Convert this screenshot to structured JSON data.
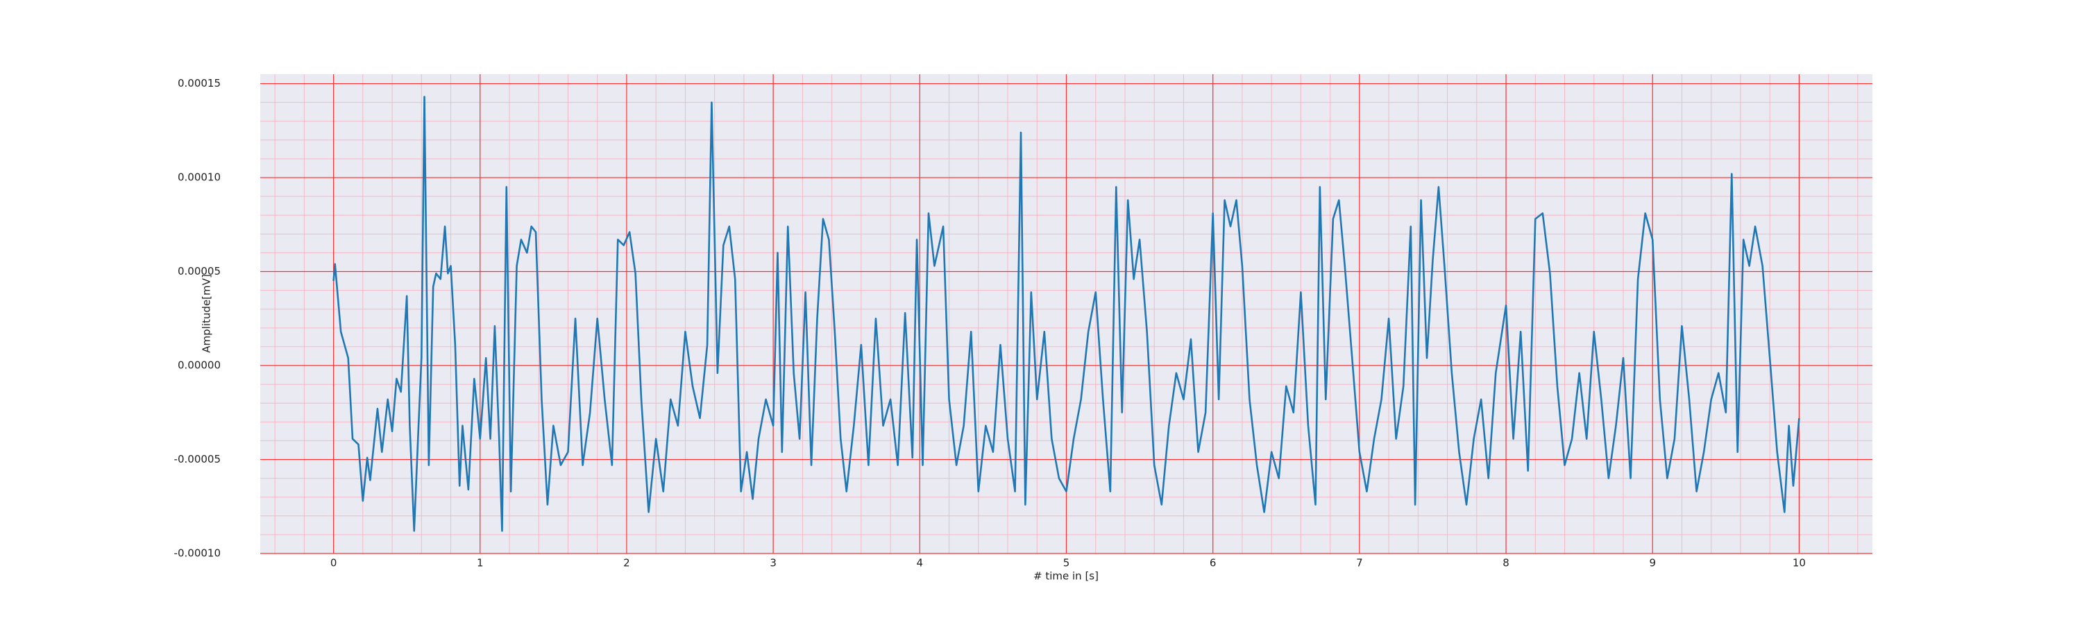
{
  "chart_data": {
    "type": "line",
    "xlabel": "# time in [s]",
    "ylabel": "Amplitude[mV]",
    "xlim": [
      -0.5,
      10.5
    ],
    "ylim": [
      -0.0001,
      0.000155
    ],
    "xticks": [
      0,
      1,
      2,
      3,
      4,
      5,
      6,
      7,
      8,
      9,
      10
    ],
    "yticks": [
      {
        "value": -0.0001,
        "label": "-0.00010"
      },
      {
        "value": -5e-05,
        "label": "-0.00005"
      },
      {
        "value": 0,
        "label": "0.00000"
      },
      {
        "value": 5e-05,
        "label": "0.00005"
      },
      {
        "value": 0.0001,
        "label": "0.00010"
      },
      {
        "value": 0.00015,
        "label": "0.00015"
      }
    ],
    "grid": true,
    "minor_grid": true,
    "series": [
      {
        "color": "#1f77b4",
        "x": [
          0,
          0.01,
          0.05,
          0.1,
          0.13,
          0.17,
          0.2,
          0.23,
          0.25,
          0.3,
          0.33,
          0.37,
          0.4,
          0.43,
          0.46,
          0.5,
          0.52,
          0.55,
          0.58,
          0.6,
          0.62,
          0.65,
          0.68,
          0.7,
          0.73,
          0.76,
          0.78,
          0.8,
          0.83,
          0.86,
          0.88,
          0.92,
          0.96,
          1.0,
          1.04,
          1.07,
          1.1,
          1.13,
          1.15,
          1.18,
          1.21,
          1.25,
          1.28,
          1.32,
          1.35,
          1.38,
          1.42,
          1.46,
          1.5,
          1.55,
          1.6,
          1.65,
          1.7,
          1.75,
          1.8,
          1.85,
          1.9,
          1.94,
          1.98,
          2.02,
          2.06,
          2.1,
          2.15,
          2.2,
          2.25,
          2.3,
          2.35,
          2.4,
          2.45,
          2.5,
          2.55,
          2.58,
          2.62,
          2.66,
          2.7,
          2.74,
          2.78,
          2.82,
          2.86,
          2.9,
          2.95,
          3.0,
          3.03,
          3.06,
          3.1,
          3.14,
          3.18,
          3.22,
          3.26,
          3.3,
          3.34,
          3.38,
          3.42,
          3.46,
          3.5,
          3.55,
          3.6,
          3.65,
          3.7,
          3.75,
          3.8,
          3.85,
          3.9,
          3.95,
          3.98,
          4.02,
          4.06,
          4.1,
          4.16,
          4.2,
          4.25,
          4.3,
          4.35,
          4.4,
          4.45,
          4.5,
          4.55,
          4.6,
          4.65,
          4.69,
          4.72,
          4.76,
          4.8,
          4.85,
          4.9,
          4.95,
          5.0,
          5.05,
          5.1,
          5.15,
          5.2,
          5.25,
          5.3,
          5.34,
          5.38,
          5.42,
          5.46,
          5.5,
          5.55,
          5.6,
          5.65,
          5.7,
          5.75,
          5.8,
          5.85,
          5.9,
          5.95,
          6.0,
          6.04,
          6.08,
          6.12,
          6.16,
          6.2,
          6.25,
          6.3,
          6.35,
          6.4,
          6.45,
          6.5,
          6.55,
          6.6,
          6.65,
          6.7,
          6.73,
          6.77,
          6.82,
          6.86,
          6.9,
          6.95,
          7.0,
          7.05,
          7.1,
          7.15,
          7.2,
          7.25,
          7.3,
          7.35,
          7.38,
          7.42,
          7.46,
          7.5,
          7.54,
          7.58,
          7.63,
          7.68,
          7.73,
          7.78,
          7.83,
          7.88,
          7.93,
          8.0,
          8.05,
          8.1,
          8.15,
          8.2,
          8.25,
          8.3,
          8.35,
          8.4,
          8.45,
          8.5,
          8.55,
          8.6,
          8.65,
          8.7,
          8.75,
          8.8,
          8.85,
          8.9,
          8.95,
          9.0,
          9.05,
          9.1,
          9.15,
          9.2,
          9.25,
          9.3,
          9.35,
          9.4,
          9.45,
          9.5,
          9.54,
          9.58,
          9.62,
          9.66,
          9.7,
          9.75,
          9.8,
          9.85,
          9.9,
          9.93,
          9.96,
          10.0
        ],
        "values": [
          4.5e-05,
          5.4e-05,
          1.8e-05,
          4e-06,
          -3.9e-05,
          -4.2e-05,
          -7.2e-05,
          -4.9e-05,
          -6.1e-05,
          -2.3e-05,
          -4.6e-05,
          -1.8e-05,
          -3.5e-05,
          -7e-06,
          -1.4e-05,
          3.7e-05,
          -3.2e-05,
          -8.8e-05,
          -3.2e-05,
          4e-06,
          0.000143,
          -5.3e-05,
          4.2e-05,
          4.9e-05,
          4.6e-05,
          7.4e-05,
          4.9e-05,
          5.3e-05,
          1.1e-05,
          -6.4e-05,
          -3.2e-05,
          -6.6e-05,
          -7e-06,
          -3.9e-05,
          4e-06,
          -3.9e-05,
          2.1e-05,
          -3.9e-05,
          -8.8e-05,
          9.5e-05,
          -6.7e-05,
          5.3e-05,
          6.7e-05,
          6e-05,
          7.4e-05,
          7.1e-05,
          -1.8e-05,
          -7.4e-05,
          -3.2e-05,
          -5.3e-05,
          -4.6e-05,
          2.5e-05,
          -5.3e-05,
          -2.5e-05,
          2.5e-05,
          -1.8e-05,
          -5.3e-05,
          6.7e-05,
          6.4e-05,
          7.1e-05,
          4.9e-05,
          -1.8e-05,
          -7.8e-05,
          -3.9e-05,
          -6.7e-05,
          -1.8e-05,
          -3.2e-05,
          1.8e-05,
          -1.1e-05,
          -2.8e-05,
          1.1e-05,
          0.00014,
          -4e-06,
          6.4e-05,
          7.4e-05,
          4.6e-05,
          -6.7e-05,
          -4.6e-05,
          -7.1e-05,
          -3.9e-05,
          -1.8e-05,
          -3.2e-05,
          6e-05,
          -4.6e-05,
          7.4e-05,
          -4e-06,
          -3.9e-05,
          3.9e-05,
          -5.3e-05,
          2.5e-05,
          7.8e-05,
          6.7e-05,
          1.8e-05,
          -3.9e-05,
          -6.7e-05,
          -3.2e-05,
          1.1e-05,
          -5.3e-05,
          2.5e-05,
          -3.2e-05,
          -1.8e-05,
          -5.3e-05,
          2.8e-05,
          -4.9e-05,
          6.7e-05,
          -5.3e-05,
          8.1e-05,
          5.3e-05,
          7.4e-05,
          -1.8e-05,
          -5.3e-05,
          -3.2e-05,
          1.8e-05,
          -6.7e-05,
          -3.2e-05,
          -4.6e-05,
          1.1e-05,
          -3.9e-05,
          -6.7e-05,
          0.000124,
          -7.4e-05,
          3.9e-05,
          -1.8e-05,
          1.8e-05,
          -3.9e-05,
          -6e-05,
          -6.7e-05,
          -3.9e-05,
          -1.8e-05,
          1.8e-05,
          3.9e-05,
          -1.8e-05,
          -6.7e-05,
          9.5e-05,
          -2.5e-05,
          8.8e-05,
          4.6e-05,
          6.7e-05,
          1.8e-05,
          -5.3e-05,
          -7.4e-05,
          -3.2e-05,
          -4e-06,
          -1.8e-05,
          1.4e-05,
          -4.6e-05,
          -2.5e-05,
          8.1e-05,
          -1.8e-05,
          8.8e-05,
          7.4e-05,
          8.8e-05,
          5.3e-05,
          -1.8e-05,
          -5.3e-05,
          -7.8e-05,
          -4.6e-05,
          -6e-05,
          -1.1e-05,
          -2.5e-05,
          3.9e-05,
          -3.2e-05,
          -7.4e-05,
          9.5e-05,
          -1.8e-05,
          7.8e-05,
          8.8e-05,
          5.3e-05,
          4e-06,
          -4.6e-05,
          -6.7e-05,
          -3.9e-05,
          -1.8e-05,
          2.5e-05,
          -3.9e-05,
          -1.1e-05,
          7.4e-05,
          -7.4e-05,
          8.8e-05,
          4e-06,
          5.6e-05,
          9.5e-05,
          5.3e-05,
          -4e-06,
          -4.6e-05,
          -7.4e-05,
          -3.9e-05,
          -1.8e-05,
          -6e-05,
          -4e-06,
          3.2e-05,
          -3.9e-05,
          1.8e-05,
          -5.6e-05,
          7.8e-05,
          8.1e-05,
          4.9e-05,
          -1.1e-05,
          -5.3e-05,
          -3.9e-05,
          -4e-06,
          -3.9e-05,
          1.8e-05,
          -1.8e-05,
          -6e-05,
          -3.2e-05,
          4e-06,
          -6e-05,
          4.6e-05,
          8.1e-05,
          6.7e-05,
          -1.8e-05,
          -6e-05,
          -3.9e-05,
          2.1e-05,
          -1.8e-05,
          -6.7e-05,
          -4.6e-05,
          -1.8e-05,
          -4e-06,
          -2.5e-05,
          0.000102,
          -4.6e-05,
          6.7e-05,
          5.3e-05,
          7.4e-05,
          5.3e-05,
          4e-06,
          -4.6e-05,
          -7.8e-05,
          -3.2e-05,
          -6.4e-05,
          -2.8e-05
        ]
      }
    ]
  }
}
